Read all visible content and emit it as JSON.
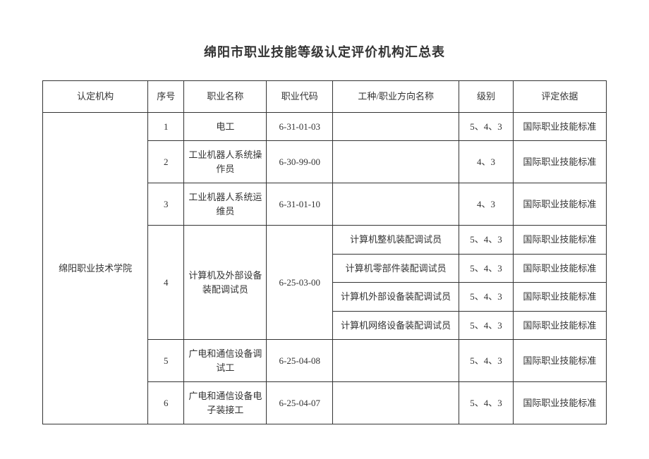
{
  "title": "绵阳市职业技能等级认定评价机构汇总表",
  "columns": {
    "institution": "认定机构",
    "seq": "序号",
    "occupation": "职业名称",
    "code": "职业代码",
    "direction": "工种/职业方向名称",
    "level": "级别",
    "basis": "评定依据"
  },
  "institution": "绵阳职业技术学院",
  "rows": [
    {
      "seq": "1",
      "occupation": "电工",
      "code": "6-31-01-03",
      "direction": "",
      "level": "5、4、3",
      "basis": "国际职业技能标准"
    },
    {
      "seq": "2",
      "occupation": "工业机器人系统操作员",
      "code": "6-30-99-00",
      "direction": "",
      "level": "4、3",
      "basis": "国际职业技能标准"
    },
    {
      "seq": "3",
      "occupation": "工业机器人系统运维员",
      "code": "6-31-01-10",
      "direction": "",
      "level": "4、3",
      "basis": "国际职业技能标准"
    },
    {
      "seq": "4",
      "occupation": "计算机及外部设备装配调试员",
      "code": "6-25-03-00",
      "subrows": [
        {
          "direction": "计算机整机装配调试员",
          "level": "5、4、3",
          "basis": "国际职业技能标准"
        },
        {
          "direction": "计算机零部件装配调试员",
          "level": "5、4、3",
          "basis": "国际职业技能标准"
        },
        {
          "direction": "计算机外部设备装配调试员",
          "level": "5、4、3",
          "basis": "国际职业技能标准"
        },
        {
          "direction": "计算机网络设备装配调试员",
          "level": "5、4、3",
          "basis": "国际职业技能标准"
        }
      ]
    },
    {
      "seq": "5",
      "occupation": "广电和通信设备调试工",
      "code": "6-25-04-08",
      "direction": "",
      "level": "5、4、3",
      "basis": "国际职业技能标准"
    },
    {
      "seq": "6",
      "occupation": "广电和通信设备电子装接工",
      "code": "6-25-04-07",
      "direction": "",
      "level": "5、4、3",
      "basis": "国际职业技能标准"
    }
  ]
}
